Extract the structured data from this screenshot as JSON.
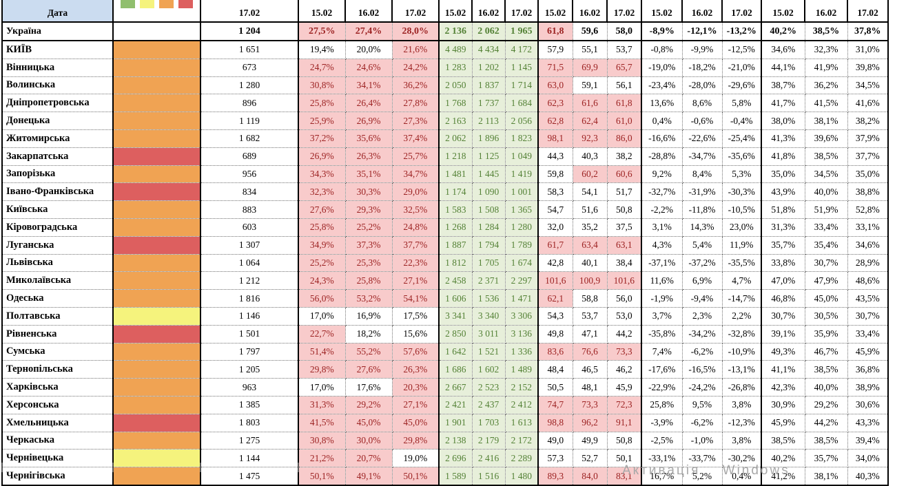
{
  "header": {
    "date_label": "Дата",
    "total_col_date": "17.02",
    "group_dates": [
      "15.02",
      "16.02",
      "17.02"
    ],
    "legend_swatches": [
      "green",
      "yellow",
      "orange",
      "red"
    ]
  },
  "columns": {
    "groups": [
      "pct1",
      "counts",
      "rate",
      "change",
      "pct2"
    ]
  },
  "thresholds": {
    "pct1_highlight_gt": 20,
    "rate_highlight_gte": 60
  },
  "status_palette": {
    "green": "#90BF6E",
    "yellow": "#F5F37D",
    "orange": "#F0A353",
    "red": "#DD5F5F"
  },
  "cell_colors": {
    "pink_bg": "#F8CBCB",
    "red_text": "#9C2222",
    "green_bg": "#E7EFDA",
    "green_text": "#538135",
    "header_blue": "#CBDCF0"
  },
  "watermark": "Активація Windows",
  "rows": [
    {
      "name": "Україна",
      "status": null,
      "total": "1 204",
      "pct1": [
        "27,5%",
        "27,4%",
        "28,0%"
      ],
      "counts": [
        "2 136",
        "2 062",
        "1 965"
      ],
      "rate": [
        "61,8",
        "59,6",
        "58,0"
      ],
      "change": [
        "-8,9%",
        "-12,1%",
        "-13,2%"
      ],
      "pct2": [
        "40,2%",
        "38,5%",
        "37,8%"
      ]
    },
    {
      "name": "КИЇВ",
      "status": "orange",
      "total": "1 651",
      "pct1": [
        "19,4%",
        "20,0%",
        "21,6%"
      ],
      "counts": [
        "4 489",
        "4 434",
        "4 172"
      ],
      "rate": [
        "57,9",
        "55,1",
        "53,7"
      ],
      "change": [
        "-0,8%",
        "-9,9%",
        "-12,5%"
      ],
      "pct2": [
        "34,6%",
        "32,3%",
        "31,0%"
      ]
    },
    {
      "name": "Вінницька",
      "status": "orange",
      "total": "673",
      "pct1": [
        "24,7%",
        "24,6%",
        "24,2%"
      ],
      "counts": [
        "1 283",
        "1 202",
        "1 145"
      ],
      "rate": [
        "71,5",
        "69,9",
        "65,7"
      ],
      "change": [
        "-19,0%",
        "-18,2%",
        "-21,0%"
      ],
      "pct2": [
        "44,1%",
        "41,9%",
        "39,8%"
      ]
    },
    {
      "name": "Волинська",
      "status": "orange",
      "total": "1 280",
      "pct1": [
        "30,8%",
        "34,1%",
        "36,2%"
      ],
      "counts": [
        "2 050",
        "1 837",
        "1 714"
      ],
      "rate": [
        "63,0",
        "59,1",
        "56,1"
      ],
      "change": [
        "-23,4%",
        "-28,0%",
        "-29,6%"
      ],
      "pct2": [
        "38,7%",
        "36,2%",
        "34,5%"
      ]
    },
    {
      "name": "Дніпропетровська",
      "status": "orange",
      "total": "896",
      "pct1": [
        "25,8%",
        "26,4%",
        "27,8%"
      ],
      "counts": [
        "1 768",
        "1 737",
        "1 684"
      ],
      "rate": [
        "62,3",
        "61,6",
        "61,8"
      ],
      "change": [
        "13,6%",
        "8,6%",
        "5,8%"
      ],
      "pct2": [
        "41,7%",
        "41,5%",
        "41,6%"
      ]
    },
    {
      "name": "Донецька",
      "status": "orange",
      "total": "1 119",
      "pct1": [
        "25,9%",
        "26,9%",
        "27,3%"
      ],
      "counts": [
        "2 163",
        "2 113",
        "2 056"
      ],
      "rate": [
        "62,8",
        "62,4",
        "61,0"
      ],
      "change": [
        "0,4%",
        "-0,6%",
        "-0,4%"
      ],
      "pct2": [
        "38,0%",
        "38,1%",
        "38,2%"
      ]
    },
    {
      "name": "Житомирська",
      "status": "orange",
      "total": "1 682",
      "pct1": [
        "37,2%",
        "35,6%",
        "37,4%"
      ],
      "counts": [
        "2 062",
        "1 896",
        "1 823"
      ],
      "rate": [
        "98,1",
        "92,3",
        "86,0"
      ],
      "change": [
        "-16,6%",
        "-22,6%",
        "-25,4%"
      ],
      "pct2": [
        "41,3%",
        "39,6%",
        "37,9%"
      ]
    },
    {
      "name": "Закарпатська",
      "status": "red",
      "total": "689",
      "pct1": [
        "26,9%",
        "26,3%",
        "25,7%"
      ],
      "counts": [
        "1 218",
        "1 125",
        "1 049"
      ],
      "rate": [
        "44,3",
        "40,3",
        "38,2"
      ],
      "change": [
        "-28,8%",
        "-34,7%",
        "-35,6%"
      ],
      "pct2": [
        "41,8%",
        "38,5%",
        "37,7%"
      ]
    },
    {
      "name": "Запорізька",
      "status": "orange",
      "total": "956",
      "pct1": [
        "34,3%",
        "35,1%",
        "34,7%"
      ],
      "counts": [
        "1 481",
        "1 445",
        "1 419"
      ],
      "rate": [
        "59,8",
        "60,2",
        "60,6"
      ],
      "change": [
        "9,2%",
        "8,4%",
        "5,3%"
      ],
      "pct2": [
        "35,0%",
        "34,5%",
        "35,0%"
      ]
    },
    {
      "name": "Івано-Франківська",
      "status": "red",
      "total": "834",
      "pct1": [
        "32,3%",
        "30,3%",
        "29,0%"
      ],
      "counts": [
        "1 174",
        "1 090",
        "1 001"
      ],
      "rate": [
        "58,3",
        "54,1",
        "51,7"
      ],
      "change": [
        "-32,7%",
        "-31,9%",
        "-30,3%"
      ],
      "pct2": [
        "43,9%",
        "40,0%",
        "38,8%"
      ]
    },
    {
      "name": "Київська",
      "status": "orange",
      "total": "883",
      "pct1": [
        "27,6%",
        "29,3%",
        "32,5%"
      ],
      "counts": [
        "1 583",
        "1 508",
        "1 365"
      ],
      "rate": [
        "54,7",
        "51,6",
        "50,8"
      ],
      "change": [
        "-2,2%",
        "-11,8%",
        "-10,5%"
      ],
      "pct2": [
        "51,8%",
        "51,9%",
        "52,8%"
      ]
    },
    {
      "name": "Кіровоградська",
      "status": "orange",
      "total": "603",
      "pct1": [
        "25,8%",
        "25,2%",
        "24,8%"
      ],
      "counts": [
        "1 268",
        "1 284",
        "1 280"
      ],
      "rate": [
        "32,0",
        "35,2",
        "37,5"
      ],
      "change": [
        "3,1%",
        "14,3%",
        "23,0%"
      ],
      "pct2": [
        "31,3%",
        "33,4%",
        "33,1%"
      ]
    },
    {
      "name": "Луганська",
      "status": "red",
      "total": "1 307",
      "pct1": [
        "34,9%",
        "37,3%",
        "37,7%"
      ],
      "counts": [
        "1 887",
        "1 794",
        "1 789"
      ],
      "rate": [
        "61,7",
        "63,4",
        "63,1"
      ],
      "change": [
        "4,3%",
        "5,4%",
        "11,9%"
      ],
      "pct2": [
        "35,7%",
        "35,4%",
        "34,6%"
      ]
    },
    {
      "name": "Львівська",
      "status": "orange",
      "total": "1 064",
      "pct1": [
        "25,2%",
        "25,3%",
        "22,3%"
      ],
      "counts": [
        "1 812",
        "1 705",
        "1 674"
      ],
      "rate": [
        "42,8",
        "40,1",
        "38,4"
      ],
      "change": [
        "-37,1%",
        "-37,2%",
        "-35,5%"
      ],
      "pct2": [
        "33,8%",
        "30,7%",
        "28,9%"
      ]
    },
    {
      "name": "Миколаївська",
      "status": "orange",
      "total": "1 212",
      "pct1": [
        "24,3%",
        "25,8%",
        "27,1%"
      ],
      "counts": [
        "2 458",
        "2 371",
        "2 297"
      ],
      "rate": [
        "101,6",
        "100,9",
        "101,6"
      ],
      "change": [
        "11,6%",
        "6,9%",
        "4,7%"
      ],
      "pct2": [
        "47,0%",
        "47,9%",
        "48,6%"
      ]
    },
    {
      "name": "Одеська",
      "status": "orange",
      "total": "1 816",
      "pct1": [
        "56,0%",
        "53,2%",
        "54,1%"
      ],
      "counts": [
        "1 606",
        "1 536",
        "1 471"
      ],
      "rate": [
        "62,1",
        "58,8",
        "56,0"
      ],
      "change": [
        "-1,9%",
        "-9,4%",
        "-14,7%"
      ],
      "pct2": [
        "46,8%",
        "45,0%",
        "43,5%"
      ]
    },
    {
      "name": "Полтавська",
      "status": "yellow",
      "total": "1 146",
      "pct1": [
        "17,0%",
        "16,9%",
        "17,5%"
      ],
      "counts": [
        "3 341",
        "3 340",
        "3 306"
      ],
      "rate": [
        "54,3",
        "53,7",
        "53,0"
      ],
      "change": [
        "3,7%",
        "2,3%",
        "2,2%"
      ],
      "pct2": [
        "30,7%",
        "30,5%",
        "30,7%"
      ]
    },
    {
      "name": "Рівненська",
      "status": "red",
      "total": "1 501",
      "pct1": [
        "22,7%",
        "18,2%",
        "15,6%"
      ],
      "counts": [
        "2 850",
        "3 011",
        "3 136"
      ],
      "rate": [
        "49,8",
        "47,1",
        "44,2"
      ],
      "change": [
        "-35,8%",
        "-34,2%",
        "-32,8%"
      ],
      "pct2": [
        "39,1%",
        "35,9%",
        "33,4%"
      ]
    },
    {
      "name": "Сумська",
      "status": "orange",
      "total": "1 797",
      "pct1": [
        "51,4%",
        "55,2%",
        "57,6%"
      ],
      "counts": [
        "1 642",
        "1 521",
        "1 336"
      ],
      "rate": [
        "83,6",
        "76,6",
        "73,3"
      ],
      "change": [
        "7,4%",
        "-6,2%",
        "-10,9%"
      ],
      "pct2": [
        "49,3%",
        "46,7%",
        "45,9%"
      ]
    },
    {
      "name": "Тернопільська",
      "status": "orange",
      "total": "1 205",
      "pct1": [
        "29,8%",
        "27,6%",
        "26,3%"
      ],
      "counts": [
        "1 686",
        "1 602",
        "1 489"
      ],
      "rate": [
        "48,4",
        "46,5",
        "46,2"
      ],
      "change": [
        "-17,6%",
        "-16,5%",
        "-13,1%"
      ],
      "pct2": [
        "41,1%",
        "38,5%",
        "36,8%"
      ]
    },
    {
      "name": "Харківська",
      "status": "orange",
      "total": "963",
      "pct1": [
        "17,0%",
        "17,6%",
        "20,3%"
      ],
      "counts": [
        "2 667",
        "2 523",
        "2 152"
      ],
      "rate": [
        "50,5",
        "48,1",
        "45,9"
      ],
      "change": [
        "-22,9%",
        "-24,2%",
        "-26,8%"
      ],
      "pct2": [
        "42,3%",
        "40,0%",
        "38,9%"
      ]
    },
    {
      "name": "Херсонська",
      "status": "orange",
      "total": "1 385",
      "pct1": [
        "31,3%",
        "29,2%",
        "27,1%"
      ],
      "counts": [
        "2 421",
        "2 437",
        "2 412"
      ],
      "rate": [
        "74,7",
        "73,3",
        "72,3"
      ],
      "change": [
        "25,8%",
        "9,5%",
        "3,8%"
      ],
      "pct2": [
        "30,9%",
        "29,2%",
        "30,6%"
      ]
    },
    {
      "name": "Хмельницька",
      "status": "red",
      "total": "1 803",
      "pct1": [
        "41,5%",
        "45,0%",
        "45,0%"
      ],
      "counts": [
        "1 901",
        "1 703",
        "1 613"
      ],
      "rate": [
        "98,8",
        "96,2",
        "91,1"
      ],
      "change": [
        "-3,9%",
        "-6,2%",
        "-12,3%"
      ],
      "pct2": [
        "45,9%",
        "44,2%",
        "43,3%"
      ]
    },
    {
      "name": "Черкаська",
      "status": "orange",
      "total": "1 275",
      "pct1": [
        "30,8%",
        "30,0%",
        "29,8%"
      ],
      "counts": [
        "2 138",
        "2 179",
        "2 172"
      ],
      "rate": [
        "49,0",
        "49,9",
        "50,8"
      ],
      "change": [
        "-2,5%",
        "-1,0%",
        "3,8%"
      ],
      "pct2": [
        "38,5%",
        "38,5%",
        "39,4%"
      ]
    },
    {
      "name": "Чернівецька",
      "status": "yellow",
      "total": "1 144",
      "pct1": [
        "21,2%",
        "20,7%",
        "19,0%"
      ],
      "counts": [
        "2 696",
        "2 416",
        "2 289"
      ],
      "rate": [
        "57,3",
        "52,7",
        "50,1"
      ],
      "change": [
        "-33,1%",
        "-33,7%",
        "-30,2%"
      ],
      "pct2": [
        "40,2%",
        "35,7%",
        "34,0%"
      ]
    },
    {
      "name": "Чернігівська",
      "status": "orange",
      "total": "1 475",
      "pct1": [
        "50,1%",
        "49,1%",
        "50,1%"
      ],
      "counts": [
        "1 589",
        "1 516",
        "1 480"
      ],
      "rate": [
        "89,3",
        "84,0",
        "83,1"
      ],
      "change": [
        "16,7%",
        "5,2%",
        "0,4%"
      ],
      "pct2": [
        "41,2%",
        "38,1%",
        "40,3%"
      ]
    }
  ]
}
